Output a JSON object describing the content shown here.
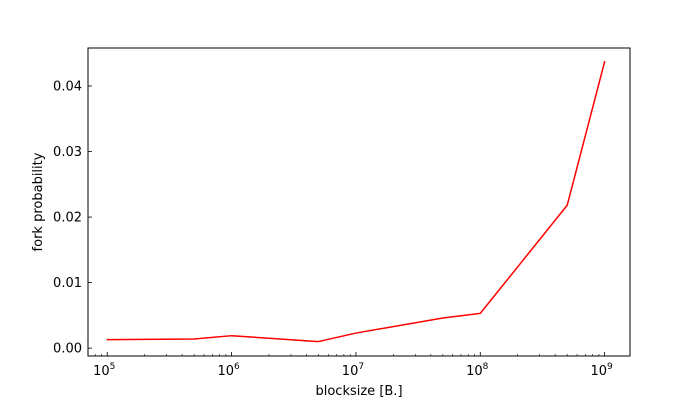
{
  "chart_data": {
    "type": "line",
    "title": "",
    "xlabel": "blocksize [B.]",
    "ylabel": "fork probability",
    "x_scale": "log",
    "xlim": [
      70000,
      1600000000
    ],
    "ylim": [
      -0.0012,
      0.0458
    ],
    "grid": false,
    "x_ticks": [
      {
        "value": 100000,
        "base": "10",
        "exp": "5"
      },
      {
        "value": 1000000,
        "base": "10",
        "exp": "6"
      },
      {
        "value": 10000000,
        "base": "10",
        "exp": "7"
      },
      {
        "value": 100000000,
        "base": "10",
        "exp": "8"
      },
      {
        "value": 1000000000,
        "base": "10",
        "exp": "9"
      }
    ],
    "y_ticks": [
      {
        "value": 0.0,
        "label": "0.00"
      },
      {
        "value": 0.01,
        "label": "0.01"
      },
      {
        "value": 0.02,
        "label": "0.02"
      },
      {
        "value": 0.03,
        "label": "0.03"
      },
      {
        "value": 0.04,
        "label": "0.04"
      }
    ],
    "series": [
      {
        "color": "#ff0000",
        "x": [
          100000,
          500000,
          1000000,
          5000000,
          10000000,
          50000000,
          100000000,
          500000000,
          1000000000
        ],
        "y": [
          0.0013,
          0.0014,
          0.0019,
          0.001,
          0.0023,
          0.0046,
          0.0053,
          0.0218,
          0.0437
        ]
      }
    ]
  }
}
